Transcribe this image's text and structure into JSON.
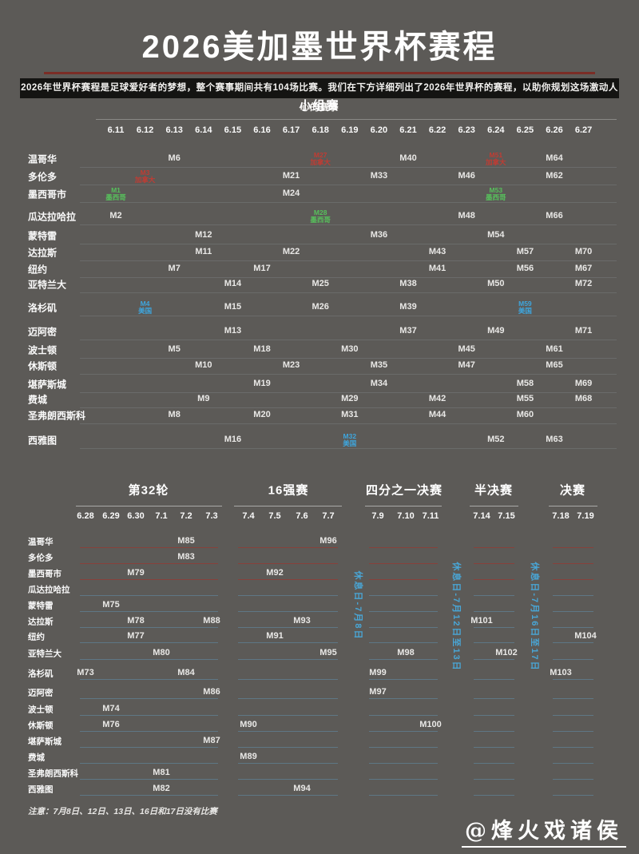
{
  "header": {
    "title": "2026美加墨世界杯赛程",
    "subtitle": "2026年世界杯赛程是足球爱好者的梦想，整个赛事期间共有104场比赛。我们在下方详细列出了2026年世界杯的赛程，以助你规划这场激动人心的赛事"
  },
  "footer": {
    "note": "注意：7月8日、12日、13日、16日和17日没有比赛",
    "watermark": "@烽火戏诸侯"
  },
  "colors": {
    "background": "#5c5a57",
    "subtitle_bar": "#141412",
    "red_divider": "#7b2d26",
    "canada_red": "#c13c33",
    "mexico_green": "#57c05c",
    "usa_blue": "#3ea6de",
    "restday_blue": "#49a6d6"
  },
  "chart_data": {
    "type": "table",
    "title": "2026美加墨世界杯赛程",
    "group": {
      "title": "小组赛",
      "dates": [
        "6.11",
        "6.12",
        "6.13",
        "6.14",
        "6.15",
        "6.16",
        "6.17",
        "6.18",
        "6.19",
        "6.20",
        "6.21",
        "6.22",
        "6.23",
        "6.24",
        "6.25",
        "6.26",
        "6.27"
      ]
    },
    "knockout_sections": [
      {
        "key": "r32",
        "title": "第32轮",
        "dates": [
          "6.28",
          "6.29",
          "6.30",
          "7.1",
          "7.2",
          "7.3"
        ]
      },
      {
        "key": "r16",
        "title": "16强赛",
        "dates": [
          "7.4",
          "7.5",
          "7.6",
          "7.7"
        ]
      },
      {
        "key": "qf",
        "title": "四分之一决赛",
        "dates": [
          "7.9",
          "7.10",
          "7.11"
        ]
      },
      {
        "key": "sf",
        "title": "半决赛",
        "dates": [
          "7.14",
          "7.15"
        ]
      },
      {
        "key": "final",
        "title": "决赛",
        "dates": [
          "7.18",
          "7.19"
        ]
      }
    ],
    "cities": [
      "温哥华",
      "多伦多",
      "墨西哥市",
      "瓜达拉哈拉",
      "蒙特雷",
      "达拉斯",
      "纽约",
      "亚特兰大",
      "洛杉矶",
      "迈阿密",
      "波士顿",
      "休斯顿",
      "堪萨斯城",
      "费城",
      "圣弗朗西斯科",
      "西雅图"
    ],
    "group_matches": [
      {
        "city": "温哥华",
        "cells": [
          [
            "M6",
            "6.13"
          ],
          [
            "M27",
            "6.18",
            "加拿大",
            "canada"
          ],
          [
            "M40",
            "6.21"
          ],
          [
            "M51",
            "6.24",
            "加拿大",
            "canada"
          ],
          [
            "M64",
            "6.26"
          ]
        ]
      },
      {
        "city": "多伦多",
        "cells": [
          [
            "M3",
            "6.12",
            "加拿大",
            "canada"
          ],
          [
            "M21",
            "6.17"
          ],
          [
            "M33",
            "6.20"
          ],
          [
            "M46",
            "6.23"
          ],
          [
            "M62",
            "6.26"
          ]
        ]
      },
      {
        "city": "墨西哥市",
        "cells": [
          [
            "M1",
            "6.11",
            "墨西哥",
            "mexico"
          ],
          [
            "M24",
            "6.17"
          ],
          [
            "M53",
            "6.24",
            "墨西哥",
            "mexico"
          ]
        ]
      },
      {
        "city": "瓜达拉哈拉",
        "cells": [
          [
            "M2",
            "6.11"
          ],
          [
            "M28",
            "6.18",
            "墨西哥",
            "mexico"
          ],
          [
            "M48",
            "6.23"
          ],
          [
            "M66",
            "6.26"
          ]
        ]
      },
      {
        "city": "蒙特雷",
        "cells": [
          [
            "M12",
            "6.14"
          ],
          [
            "M36",
            "6.20"
          ],
          [
            "M54",
            "6.24"
          ]
        ]
      },
      {
        "city": "达拉斯",
        "cells": [
          [
            "M11",
            "6.14"
          ],
          [
            "M22",
            "6.17"
          ],
          [
            "M43",
            "6.22"
          ],
          [
            "M57",
            "6.25"
          ],
          [
            "M70",
            "6.27"
          ]
        ]
      },
      {
        "city": "纽约",
        "cells": [
          [
            "M7",
            "6.13"
          ],
          [
            "M17",
            "6.16"
          ],
          [
            "M41",
            "6.22"
          ],
          [
            "M56",
            "6.25"
          ],
          [
            "M67",
            "6.27"
          ]
        ]
      },
      {
        "city": "亚特兰大",
        "cells": [
          [
            "M14",
            "6.15"
          ],
          [
            "M25",
            "6.18"
          ],
          [
            "M38",
            "6.21"
          ],
          [
            "M50",
            "6.24"
          ],
          [
            "M72",
            "6.27"
          ]
        ]
      },
      {
        "city": "洛杉矶",
        "cells": [
          [
            "M4",
            "6.12",
            "美国",
            "usa"
          ],
          [
            "M15",
            "6.15"
          ],
          [
            "M26",
            "6.18"
          ],
          [
            "M39",
            "6.21"
          ],
          [
            "M59",
            "6.25",
            "美国",
            "usa"
          ]
        ]
      },
      {
        "city": "迈阿密",
        "cells": [
          [
            "M13",
            "6.15"
          ],
          [
            "M37",
            "6.21"
          ],
          [
            "M49",
            "6.24"
          ],
          [
            "M71",
            "6.27"
          ]
        ]
      },
      {
        "city": "波士顿",
        "cells": [
          [
            "M5",
            "6.13"
          ],
          [
            "M18",
            "6.16"
          ],
          [
            "M30",
            "6.19"
          ],
          [
            "M45",
            "6.23"
          ],
          [
            "M61",
            "6.26"
          ]
        ]
      },
      {
        "city": "休斯顿",
        "cells": [
          [
            "M10",
            "6.14"
          ],
          [
            "M23",
            "6.17"
          ],
          [
            "M35",
            "6.20"
          ],
          [
            "M47",
            "6.23"
          ],
          [
            "M65",
            "6.26"
          ]
        ]
      },
      {
        "city": "堪萨斯城",
        "cells": [
          [
            "M19",
            "6.16"
          ],
          [
            "M34",
            "6.20"
          ],
          [
            "M58",
            "6.25"
          ],
          [
            "M69",
            "6.27"
          ]
        ]
      },
      {
        "city": "费城",
        "cells": [
          [
            "M9",
            "6.14"
          ],
          [
            "M29",
            "6.19"
          ],
          [
            "M42",
            "6.22"
          ],
          [
            "M55",
            "6.25"
          ],
          [
            "M68",
            "6.27"
          ]
        ]
      },
      {
        "city": "圣弗朗西斯科",
        "cells": [
          [
            "M8",
            "6.13"
          ],
          [
            "M20",
            "6.16"
          ],
          [
            "M31",
            "6.19"
          ],
          [
            "M44",
            "6.22"
          ],
          [
            "M60",
            "6.25"
          ]
        ]
      },
      {
        "city": "西雅图",
        "cells": [
          [
            "M16",
            "6.15"
          ],
          [
            "M32",
            "6.19",
            "美国",
            "usa"
          ],
          [
            "M52",
            "6.24"
          ],
          [
            "M63",
            "6.26"
          ]
        ]
      }
    ],
    "knockout_matches": [
      {
        "city": "温哥华",
        "cells": [
          [
            "M85",
            "7.2"
          ],
          [
            "M96",
            "7.7"
          ]
        ]
      },
      {
        "city": "多伦多",
        "cells": [
          [
            "M83",
            "7.2"
          ]
        ]
      },
      {
        "city": "墨西哥市",
        "cells": [
          [
            "M79",
            "6.30"
          ],
          [
            "M92",
            "7.5"
          ]
        ]
      },
      {
        "city": "瓜达拉哈拉",
        "cells": []
      },
      {
        "city": "蒙特雷",
        "cells": [
          [
            "M75",
            "6.29"
          ]
        ]
      },
      {
        "city": "达拉斯",
        "cells": [
          [
            "M78",
            "6.30"
          ],
          [
            "M88",
            "7.3"
          ],
          [
            "M93",
            "7.6"
          ],
          [
            "M101",
            "7.14"
          ]
        ]
      },
      {
        "city": "纽约",
        "cells": [
          [
            "M77",
            "6.30"
          ],
          [
            "M91",
            "7.5"
          ],
          [
            "M104",
            "7.19"
          ]
        ]
      },
      {
        "city": "亚特兰大",
        "cells": [
          [
            "M80",
            "7.1"
          ],
          [
            "M95",
            "7.7"
          ],
          [
            "M98",
            "7.10"
          ],
          [
            "M102",
            "7.15"
          ]
        ]
      },
      {
        "city": "洛杉矶",
        "cells": [
          [
            "M73",
            "6.28"
          ],
          [
            "M84",
            "7.2"
          ],
          [
            "M99",
            "7.9"
          ],
          [
            "M103",
            "7.18"
          ]
        ]
      },
      {
        "city": "迈阿密",
        "cells": [
          [
            "M86",
            "7.3"
          ],
          [
            "M97",
            "7.9"
          ]
        ]
      },
      {
        "city": "波士顿",
        "cells": [
          [
            "M74",
            "6.29"
          ]
        ]
      },
      {
        "city": "休斯顿",
        "cells": [
          [
            "M76",
            "6.29"
          ],
          [
            "M90",
            "7.4"
          ],
          [
            "M100",
            "7.11"
          ]
        ]
      },
      {
        "city": "堪萨斯城",
        "cells": [
          [
            "M87",
            "7.3"
          ]
        ]
      },
      {
        "city": "费城",
        "cells": [
          [
            "M89",
            "7.4"
          ]
        ]
      },
      {
        "city": "圣弗朗西斯科",
        "cells": [
          [
            "M81",
            "7.1"
          ]
        ]
      },
      {
        "city": "西雅图",
        "cells": [
          [
            "M82",
            "7.1"
          ],
          [
            "M94",
            "7.6"
          ]
        ]
      }
    ],
    "rest_days": [
      "休息日-7月8日",
      "休息日-7月12日至13日",
      "休息日-7月16日至17日"
    ]
  }
}
